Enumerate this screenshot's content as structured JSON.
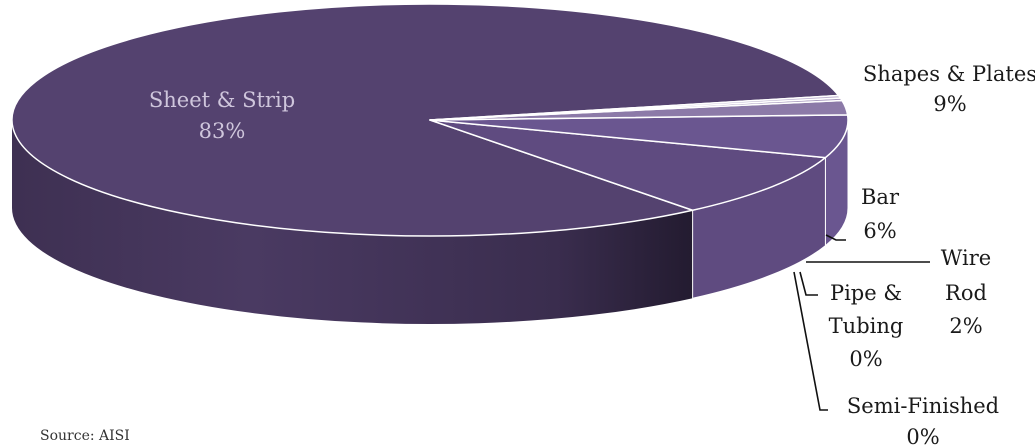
{
  "chart_data": {
    "type": "pie",
    "style": "3d",
    "slices": [
      {
        "label": "Sheet & Strip",
        "value_label": "83%",
        "value": 83,
        "color": "#54426f"
      },
      {
        "label": "Shapes & Plates",
        "value_label": "9%",
        "value": 9,
        "color": "#5f4b80"
      },
      {
        "label": "Bar",
        "value_label": "6%",
        "value": 6,
        "color": "#6a5690"
      },
      {
        "label": "Wire Rod",
        "value_label": "2%",
        "value": 2,
        "color": "#8c7aa8"
      },
      {
        "label": "Pipe & Tubing",
        "value_label": "0%",
        "value": 0.35,
        "color": "#a596bc"
      },
      {
        "label": "Semi-Finished",
        "value_label": "0%",
        "value": 0.35,
        "color": "#bdb2cf"
      }
    ],
    "legend": "none"
  },
  "source_note": "Source: AISI"
}
